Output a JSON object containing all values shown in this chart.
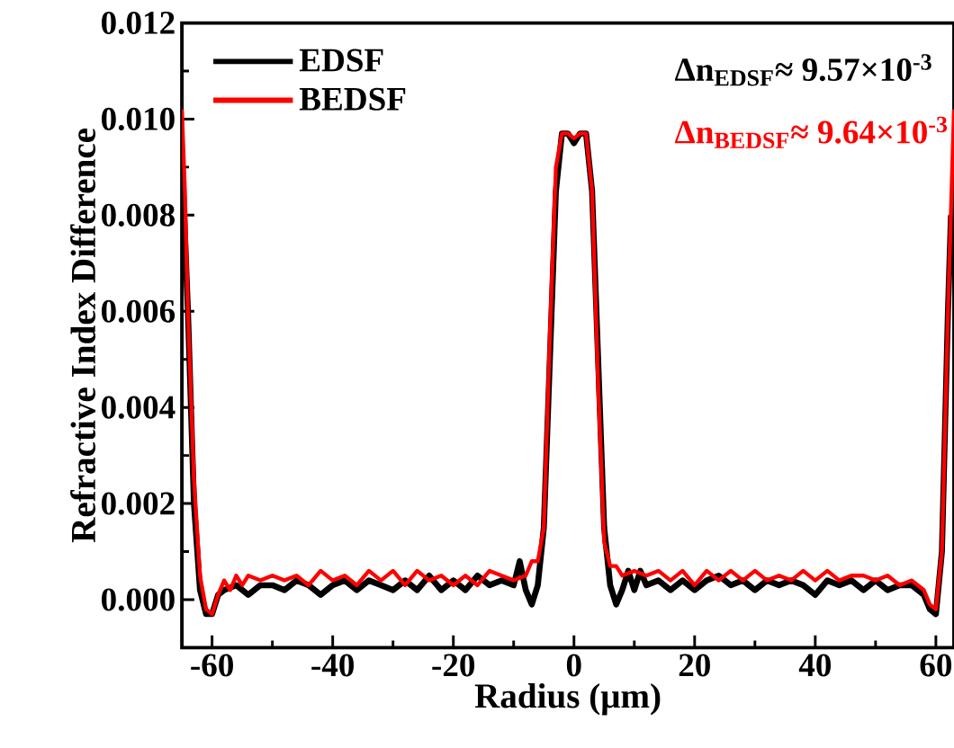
{
  "chart_data": {
    "type": "line",
    "xlabel": "Radius (μm)",
    "ylabel": "Refractive Index Difference",
    "xlim": [
      -65,
      63
    ],
    "ylim": [
      -0.001,
      0.012
    ],
    "xticks": [
      -60,
      -40,
      -20,
      0,
      20,
      40,
      60
    ],
    "yticks": [
      {
        "value": 0,
        "label": "0.000"
      },
      {
        "value": 0.002,
        "label": "0.002"
      },
      {
        "value": 0.004,
        "label": "0.004"
      },
      {
        "value": 0.006,
        "label": "0.006"
      },
      {
        "value": 0.008,
        "label": "0.008"
      },
      {
        "value": 0.01,
        "label": "0.010"
      },
      {
        "value": 0.012,
        "label": "0.012"
      }
    ],
    "legend": "top left",
    "grid": false,
    "line_style": "solid",
    "marker": "none",
    "annotations": [
      "Δn$_{EDSF}$≈ 9.57×10$^{-3}$",
      "Δn$_{BEDSF}$≈ 9.64×10$^{-3}$"
    ],
    "series": [
      {
        "name": "EDSF",
        "color": "#000000",
        "x": [
          -65,
          -64,
          -63,
          -62,
          -61,
          -60,
          -59,
          -58,
          -56,
          -54,
          -52,
          -50,
          -48,
          -46,
          -44,
          -42,
          -40,
          -38,
          -36,
          -34,
          -32,
          -30,
          -28,
          -26,
          -24,
          -22,
          -20,
          -18,
          -16,
          -14,
          -12,
          -10,
          -9,
          -8,
          -7,
          -6,
          -5,
          -4,
          -3,
          -2,
          -1,
          0,
          1,
          2,
          3,
          4,
          5,
          6,
          7,
          8,
          9,
          10,
          11,
          12,
          14,
          16,
          18,
          20,
          22,
          24,
          26,
          28,
          30,
          32,
          34,
          36,
          38,
          40,
          42,
          44,
          46,
          48,
          50,
          52,
          54,
          56,
          58,
          59,
          60,
          61,
          62,
          62.5
        ],
        "values": [
          0.0092,
          0.006,
          0.002,
          0.0002,
          -0.0003,
          -0.0003,
          0.0001,
          0.0002,
          0.0003,
          0.0001,
          0.0003,
          0.0003,
          0.0002,
          0.0004,
          0.0003,
          0.0001,
          0.0003,
          0.0004,
          0.0002,
          0.0004,
          0.0003,
          0.0002,
          0.0004,
          0.0002,
          0.0005,
          0.0002,
          0.0004,
          0.0002,
          0.0005,
          0.0003,
          0.0004,
          0.0003,
          0.0008,
          0.0002,
          -0.0001,
          0.0003,
          0.0015,
          0.005,
          0.0085,
          0.0097,
          0.0097,
          0.0095,
          0.0097,
          0.0097,
          0.0085,
          0.005,
          0.0015,
          0.0003,
          -0.0001,
          0.0002,
          0.0006,
          0.0002,
          0.0006,
          0.0003,
          0.0004,
          0.0002,
          0.0004,
          0.0002,
          0.0004,
          0.0005,
          0.0003,
          0.0004,
          0.0002,
          0.0004,
          0.0003,
          0.0004,
          0.0003,
          0.0001,
          0.0004,
          0.0003,
          0.0004,
          0.0002,
          0.0004,
          0.0002,
          0.0003,
          0.0003,
          0.0001,
          -0.0002,
          -0.0003,
          0.001,
          0.006,
          0.008
        ]
      },
      {
        "name": "BEDSF",
        "color": "#ff0000",
        "x": [
          -65,
          -64.5,
          -64,
          -63,
          -62,
          -61,
          -60,
          -59,
          -58,
          -57,
          -56,
          -55,
          -54,
          -52,
          -50,
          -48,
          -46,
          -44,
          -42,
          -40,
          -38,
          -36,
          -34,
          -32,
          -30,
          -28,
          -26,
          -24,
          -22,
          -20,
          -18,
          -16,
          -14,
          -12,
          -10,
          -8,
          -7,
          -6,
          -5,
          -4,
          -3,
          -2,
          -1,
          0,
          1,
          2,
          3,
          4,
          5,
          6,
          7,
          8,
          10,
          12,
          14,
          16,
          18,
          20,
          22,
          24,
          26,
          28,
          30,
          32,
          34,
          36,
          38,
          40,
          42,
          44,
          46,
          48,
          50,
          52,
          54,
          56,
          58,
          59,
          60,
          61,
          62,
          63
        ],
        "values": [
          0.0102,
          0.0085,
          0.006,
          0.0025,
          0.0005,
          -0.0002,
          -0.0003,
          0.0001,
          0.0004,
          0.0002,
          0.0005,
          0.0003,
          0.0005,
          0.0004,
          0.0005,
          0.0004,
          0.0005,
          0.0003,
          0.0006,
          0.0004,
          0.0005,
          0.0003,
          0.0006,
          0.0004,
          0.0006,
          0.0003,
          0.0006,
          0.0004,
          0.0005,
          0.0003,
          0.0005,
          0.0003,
          0.0006,
          0.0005,
          0.0004,
          0.0005,
          0.0008,
          0.0008,
          0.0015,
          0.0055,
          0.009,
          0.0097,
          0.0097,
          0.0096,
          0.0097,
          0.0097,
          0.0085,
          0.0045,
          0.0012,
          0.0007,
          0.0007,
          0.0005,
          0.0006,
          0.0005,
          0.0006,
          0.0004,
          0.0006,
          0.0003,
          0.0006,
          0.0004,
          0.0006,
          0.0004,
          0.0006,
          0.0004,
          0.0005,
          0.0004,
          0.0006,
          0.0004,
          0.0006,
          0.0004,
          0.0005,
          0.0005,
          0.0004,
          0.0005,
          0.0003,
          0.0004,
          0.0002,
          -0.0001,
          -0.0002,
          0.001,
          0.006,
          0.0102
        ]
      }
    ]
  }
}
